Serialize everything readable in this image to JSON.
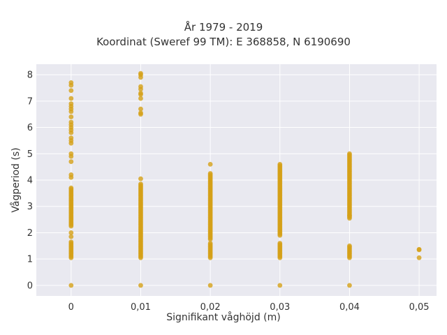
{
  "chart_data": {
    "type": "scatter",
    "title_lines": [
      "År 1979 - 2019",
      "Koordinat (Sweref 99 TM): E 368858, N 6190690"
    ],
    "xlabel": "Signifikant våghöjd (m)",
    "ylabel": "Vågperiod (s)",
    "xlim": [
      -0.005,
      0.0525
    ],
    "ylim": [
      -0.4,
      8.4
    ],
    "x_ticks": [
      0,
      0.01,
      0.02,
      0.03,
      0.04,
      0.05
    ],
    "x_tick_labels": [
      "0",
      "0,01",
      "0,02",
      "0,03",
      "0,04",
      "0,05"
    ],
    "y_ticks": [
      0,
      1,
      2,
      3,
      4,
      5,
      6,
      7,
      8
    ],
    "y_tick_labels": [
      "0",
      "1",
      "2",
      "3",
      "4",
      "5",
      "6",
      "7",
      "8"
    ],
    "grid": true,
    "legend": "none",
    "marker_color": "#D4A017",
    "plot_bg": "#E9E9F0",
    "clusters": [
      {
        "x": 0,
        "points": [
          0
        ],
        "ranges": [
          [
            1.05,
            1.65
          ],
          [
            2.25,
            3.72
          ]
        ],
        "extra": [
          1.85,
          2.0,
          4.1,
          4.2,
          4.7,
          4.9,
          5.0,
          5.4,
          5.5,
          5.6,
          5.8,
          5.9,
          6.0,
          6.1,
          6.2,
          6.4,
          6.6,
          6.7,
          6.8,
          6.9,
          7.1,
          7.4,
          7.6,
          7.7
        ]
      },
      {
        "x": 0.01,
        "points": [
          0
        ],
        "ranges": [
          [
            1.05,
            3.85
          ]
        ],
        "extra": [
          4.05,
          6.5,
          6.55,
          6.7,
          7.1,
          7.25,
          7.3,
          7.45,
          7.55,
          7.9,
          8.0,
          8.05
        ]
      },
      {
        "x": 0.02,
        "points": [
          0
        ],
        "ranges": [
          [
            1.05,
            1.6
          ],
          [
            1.75,
            4.25
          ]
        ],
        "extra": [
          4.6
        ]
      },
      {
        "x": 0.03,
        "points": [
          0
        ],
        "ranges": [
          [
            1.05,
            1.6
          ],
          [
            1.9,
            4.6
          ]
        ],
        "extra": []
      },
      {
        "x": 0.04,
        "points": [
          0
        ],
        "ranges": [
          [
            1.05,
            1.5
          ],
          [
            2.6,
            5.0
          ]
        ],
        "extra": [
          2.55,
          2.65
        ]
      },
      {
        "x": 0.05,
        "points": [
          1.05,
          1.35,
          1.37
        ],
        "ranges": [],
        "extra": []
      }
    ]
  }
}
